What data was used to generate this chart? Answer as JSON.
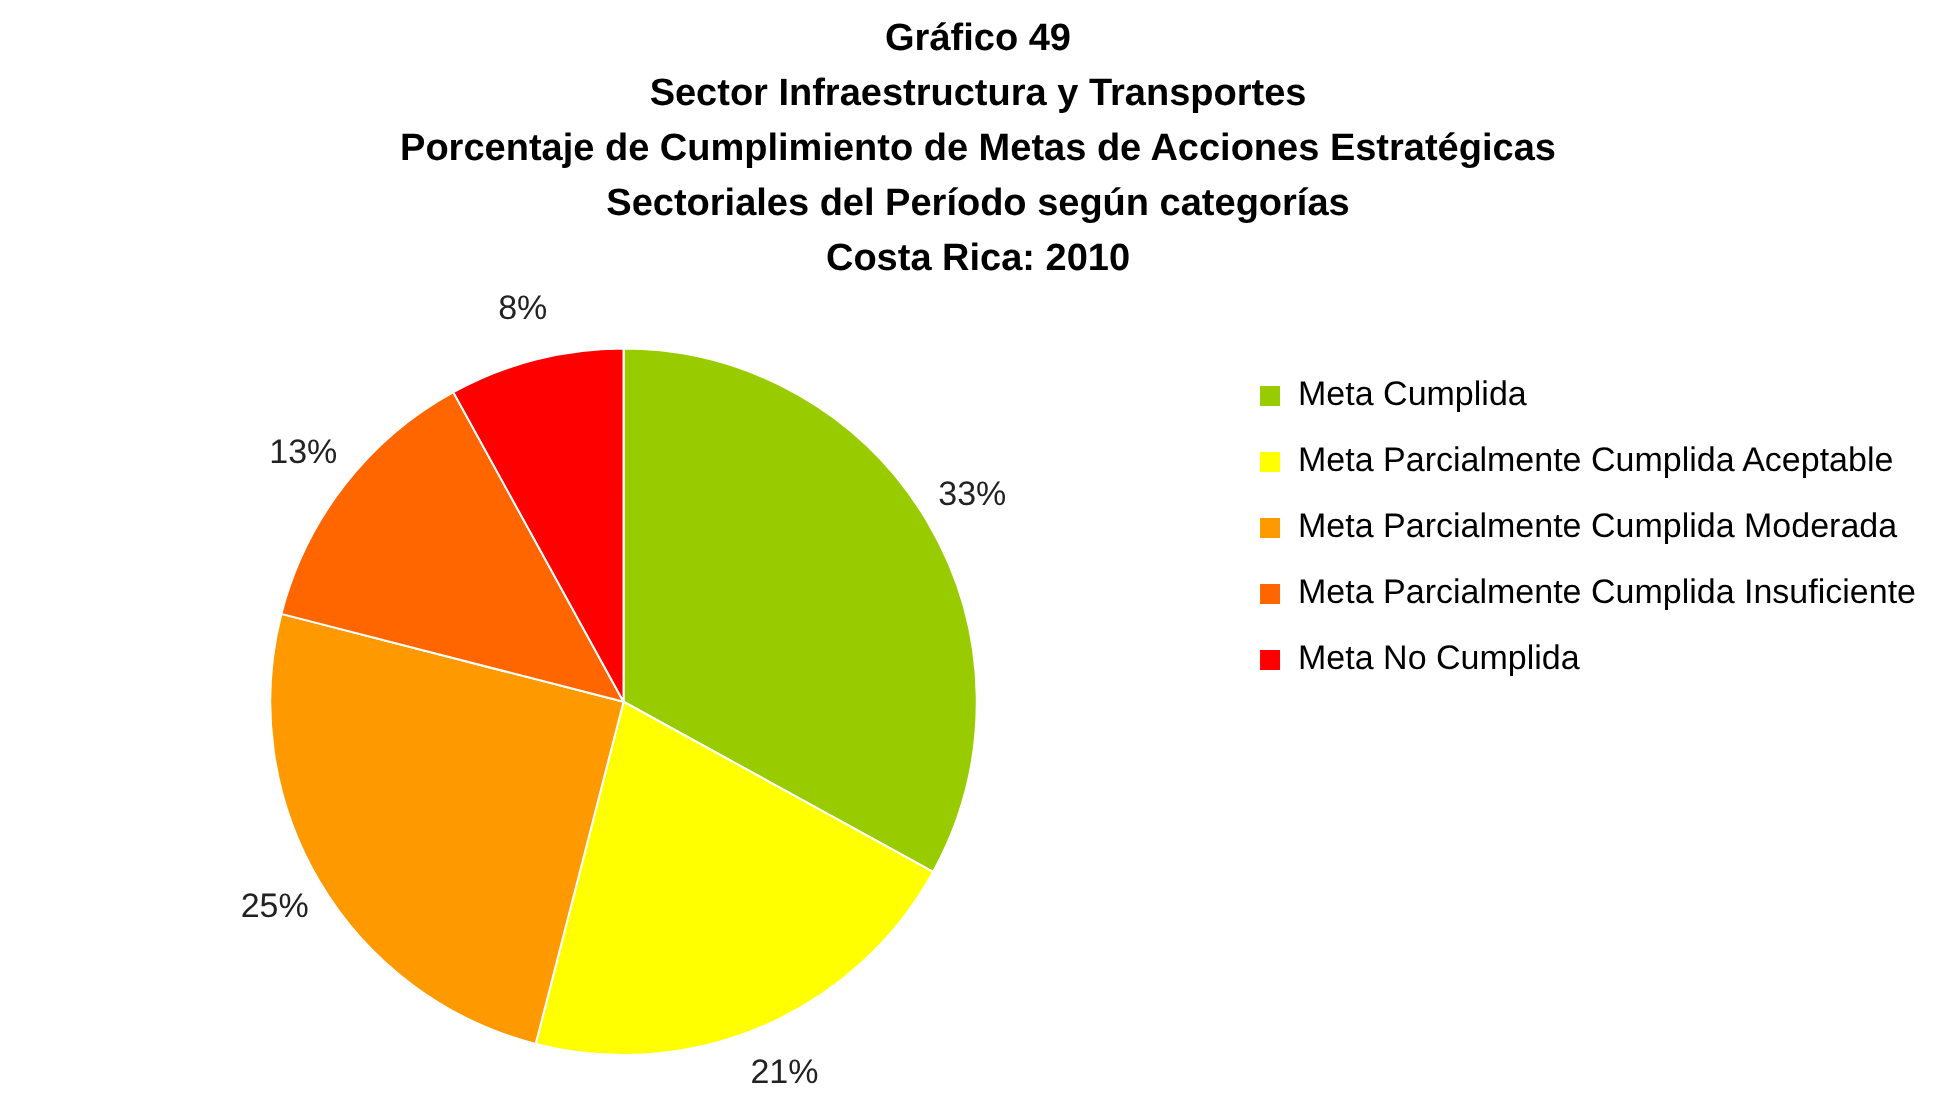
{
  "chart_data": {
    "type": "pie",
    "title": "Gráfico 49\nSector Infraestructura y Transportes\nPorcentaje de Cumplimiento de Metas de Acciones Estratégicas\nSectoriales del Período según categorías\nCosta Rica: 2010",
    "categories": [
      "Meta Cumplida",
      "Meta Parcialmente Cumplida Aceptable",
      "Meta Parcialmente Cumplida Moderada",
      "Meta Parcialmente Cumplida Insuficiente",
      "Meta No Cumplida"
    ],
    "values": [
      33,
      21,
      25,
      13,
      8
    ],
    "colors": [
      "#99cc00",
      "#ffff00",
      "#ff9900",
      "#ff6600",
      "#ff0000"
    ],
    "value_labels": [
      "33%",
      "21%",
      "25%",
      "13%",
      "8%"
    ],
    "legend": "right"
  }
}
